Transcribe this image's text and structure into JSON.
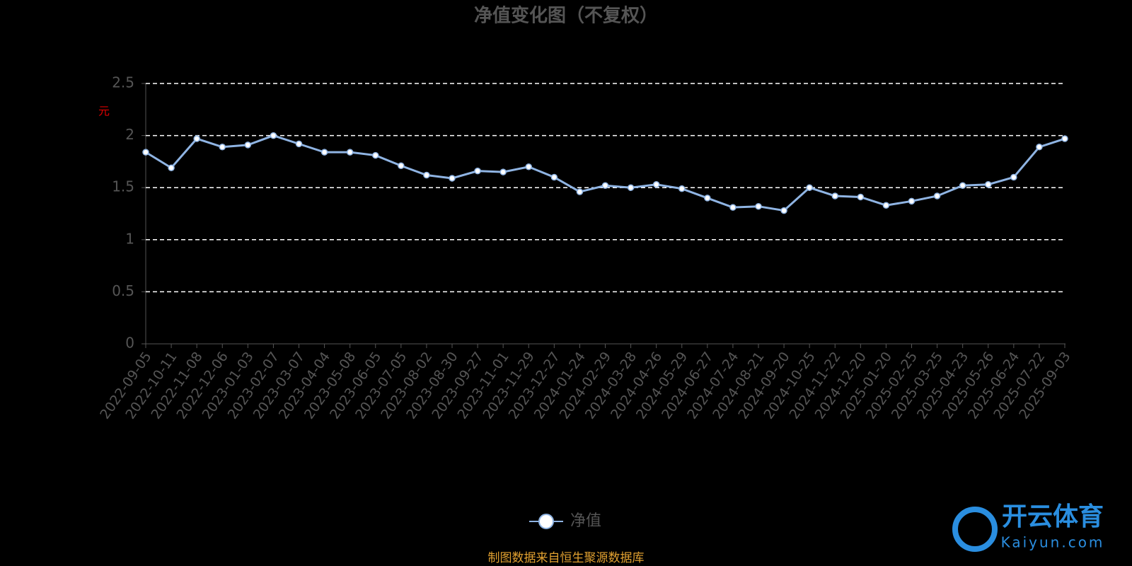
{
  "chart_data": {
    "type": "line",
    "title": "净值变化图（不复权）",
    "y_label": "元",
    "categories": [
      "2022-09-05",
      "2022-10-11",
      "2022-11-08",
      "2022-12-06",
      "2023-01-03",
      "2023-02-07",
      "2023-03-07",
      "2023-04-04",
      "2023-05-08",
      "2023-06-05",
      "2023-07-05",
      "2023-08-02",
      "2023-08-30",
      "2023-09-27",
      "2023-11-01",
      "2023-11-29",
      "2023-12-27",
      "2024-01-24",
      "2024-02-29",
      "2024-03-28",
      "2024-04-26",
      "2024-05-29",
      "2024-06-27",
      "2024-07-24",
      "2024-08-21",
      "2024-09-20",
      "2024-10-25",
      "2024-11-22",
      "2024-12-20",
      "2025-01-20",
      "2025-02-25",
      "2025-03-25",
      "2025-04-23",
      "2025-05-26",
      "2025-06-24",
      "2025-07-22",
      "2025-09-03"
    ],
    "series": [
      {
        "name": "净值",
        "color": "#8fb4e3",
        "values": [
          1.84,
          1.69,
          1.97,
          1.89,
          1.91,
          2.0,
          1.92,
          1.84,
          1.84,
          1.81,
          1.71,
          1.62,
          1.59,
          1.66,
          1.65,
          1.7,
          1.6,
          1.46,
          1.52,
          1.5,
          1.53,
          1.49,
          1.4,
          1.31,
          1.32,
          1.28,
          1.5,
          1.42,
          1.41,
          1.33,
          1.37,
          1.42,
          1.52,
          1.53,
          1.6,
          1.89,
          1.97
        ]
      }
    ],
    "ylim": [
      0,
      2.5
    ],
    "yticks": [
      0,
      0.5,
      1,
      1.5,
      2,
      2.5
    ],
    "grid": true,
    "source": "制图数据来自恒生聚源数据库",
    "watermark": {
      "brand": "开云体育",
      "site": "Kaiyun.com"
    }
  }
}
